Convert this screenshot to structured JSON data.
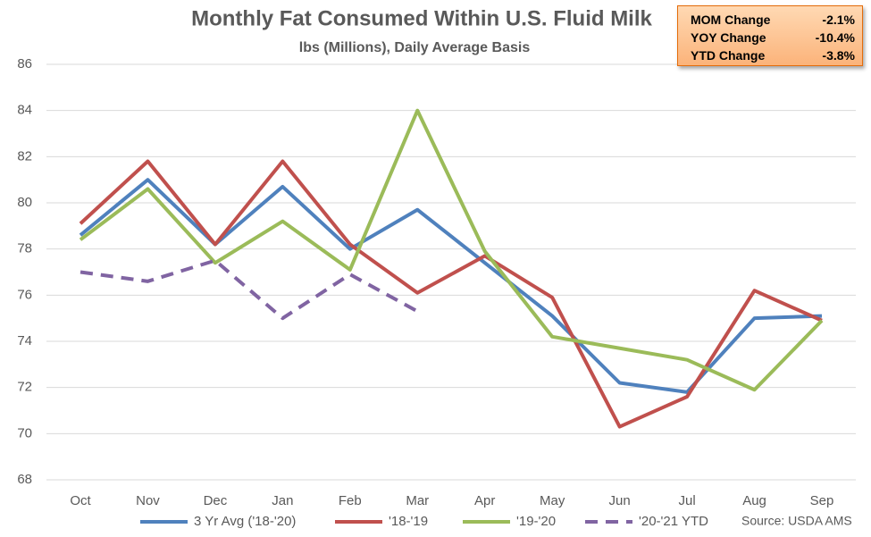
{
  "chart_data": {
    "type": "line",
    "title": "Monthly Fat Consumed Within U.S. Fluid Milk",
    "subtitle": "lbs (Millions), Daily Average Basis",
    "source": "Source: USDA AMS",
    "categories": [
      "Oct",
      "Nov",
      "Dec",
      "Jan",
      "Feb",
      "Mar",
      "Apr",
      "May",
      "Jun",
      "Jul",
      "Aug",
      "Sep"
    ],
    "series": [
      {
        "name": "3 Yr Avg ('18-'20)",
        "color": "#4f81bd",
        "values": [
          78.6,
          81.0,
          78.2,
          80.7,
          78.0,
          79.7,
          77.4,
          75.1,
          72.2,
          71.8,
          75.0,
          75.1
        ]
      },
      {
        "name": "'18-'19",
        "color": "#c0504d",
        "values": [
          79.1,
          81.8,
          78.2,
          81.8,
          78.2,
          76.1,
          77.7,
          75.9,
          70.3,
          71.6,
          76.2,
          74.9
        ]
      },
      {
        "name": "'19-'20",
        "color": "#9bbb59",
        "values": [
          78.4,
          80.6,
          77.4,
          79.2,
          77.1,
          84.0,
          77.9,
          74.2,
          73.7,
          73.2,
          71.9,
          74.9
        ]
      },
      {
        "name": "'20-'21 YTD",
        "color": "#8064a2",
        "dashed": true,
        "values": [
          77.0,
          76.6,
          77.5,
          75.0,
          76.9,
          75.3,
          null,
          null,
          null,
          null,
          null,
          null
        ]
      }
    ],
    "ylim": [
      68,
      86
    ],
    "yticks": [
      68,
      70,
      72,
      74,
      76,
      78,
      80,
      82,
      84,
      86
    ],
    "grid": true,
    "summary": [
      {
        "label": "MOM Change",
        "value": "-2.1%"
      },
      {
        "label": "YOY Change",
        "value": "-10.4%"
      },
      {
        "label": "YTD Change",
        "value": "-3.8%"
      }
    ]
  }
}
